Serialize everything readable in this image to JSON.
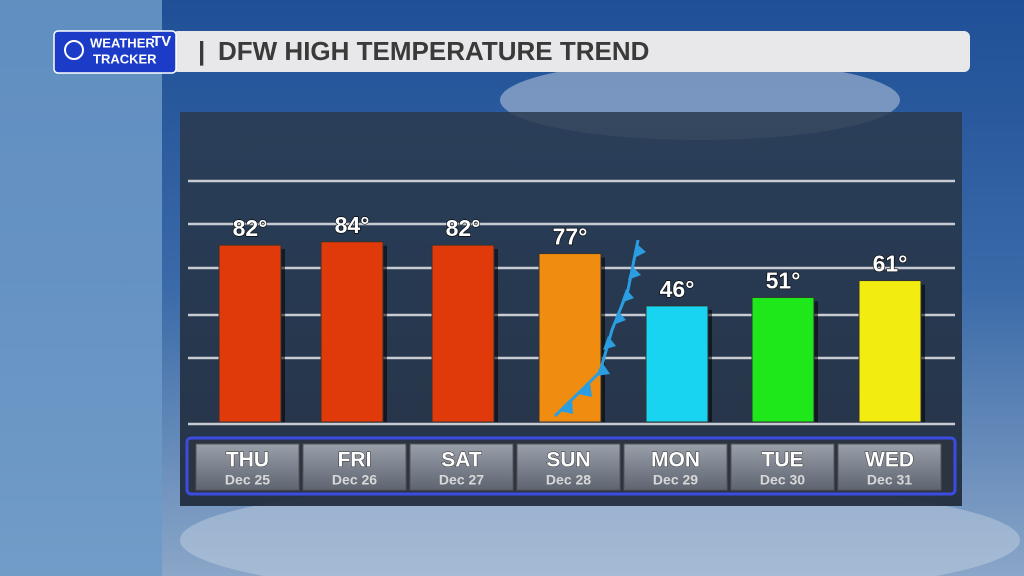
{
  "logo": {
    "line1": "WEATHER",
    "line2": "TRACKER",
    "badge": "TV"
  },
  "chart_data": {
    "type": "bar",
    "title": "DFW HIGH TEMPERATURE TREND",
    "categories": [
      "THU",
      "FRI",
      "SAT",
      "SUN",
      "MON",
      "TUE",
      "WED"
    ],
    "dates": [
      "Dec 25",
      "Dec 26",
      "Dec 27",
      "Dec 28",
      "Dec 29",
      "Dec 30",
      "Dec 31"
    ],
    "values": [
      82,
      84,
      82,
      77,
      46,
      51,
      61
    ],
    "value_labels": [
      "82°",
      "84°",
      "82°",
      "77°",
      "46°",
      "51°",
      "61°"
    ],
    "colors": [
      "#e03a0a",
      "#e03a0a",
      "#e03a0a",
      "#f08c10",
      "#18d4f0",
      "#1ee81a",
      "#f2ec10"
    ],
    "ylim": [
      -24,
      120
    ]
  }
}
